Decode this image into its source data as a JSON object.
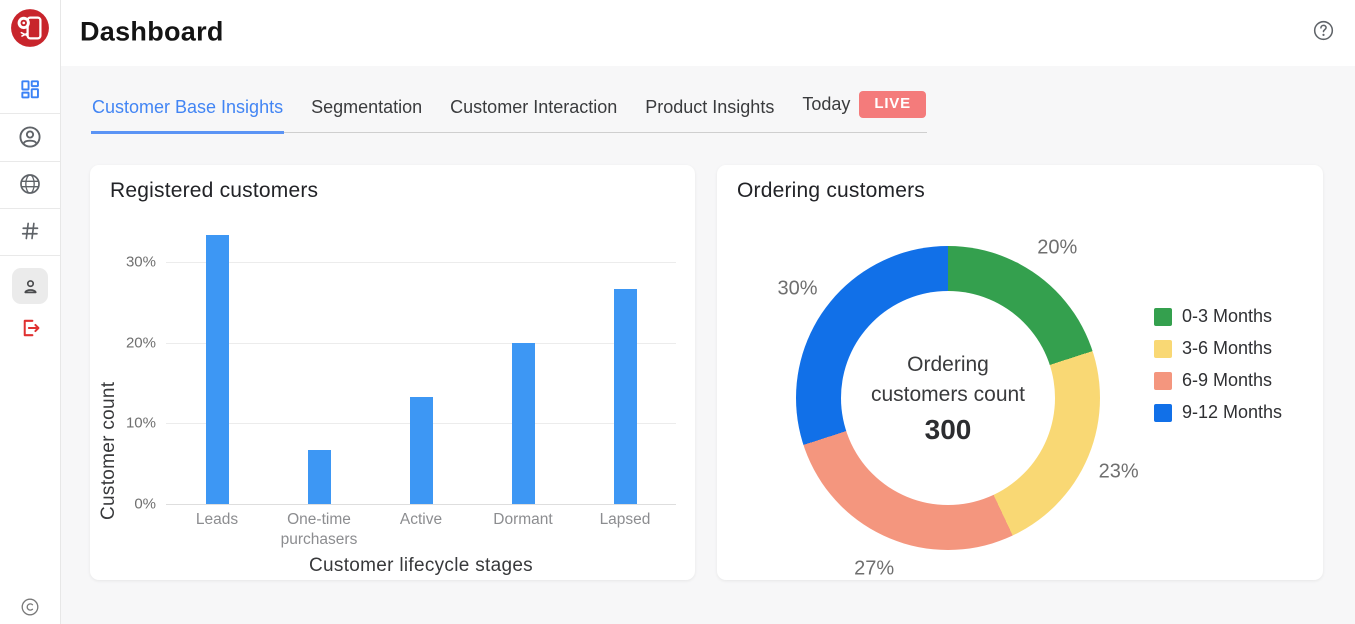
{
  "header": {
    "title": "Dashboard",
    "help_icon": "help-circle-icon"
  },
  "sidebar": {
    "logo_icon": "brand-logo",
    "icons": [
      "dashboard-grid-icon",
      "account-circle-icon",
      "globe-icon",
      "hash-icon",
      "user-icon",
      "logout-icon",
      "copyright-icon"
    ],
    "active_icon": "user-icon"
  },
  "tabs": [
    {
      "label": "Customer Base Insights",
      "active": true
    },
    {
      "label": "Segmentation",
      "active": false
    },
    {
      "label": "Customer Interaction",
      "active": false
    },
    {
      "label": "Product Insights",
      "active": false
    },
    {
      "label": "Today",
      "active": false,
      "badge": "LIVE"
    }
  ],
  "colors": {
    "accent_blue": "#4285f4",
    "live_badge": "#f47b7b",
    "bar_blue": "#3d97f4",
    "donut_green": "#34a04e",
    "donut_yellow": "#f9d874",
    "donut_salmon": "#f4967e",
    "donut_blue": "#1170e8"
  },
  "chart_data": [
    {
      "type": "bar",
      "title": "Registered customers",
      "categories": [
        "Leads",
        "One-time purchasers",
        "Active",
        "Dormant",
        "Lapsed"
      ],
      "values": [
        33.3,
        6.7,
        13.3,
        20,
        26.7
      ],
      "xlabel": "Customer lifecycle stages",
      "ylabel": "Customer count",
      "ylim": [
        0,
        35.2
      ],
      "yticks": [
        0,
        10,
        20,
        30
      ],
      "ytick_suffix": "%",
      "bar_color": "#3d97f4",
      "grid": true,
      "legend": "none"
    },
    {
      "type": "pie",
      "donut": true,
      "title": "Ordering customers",
      "center_label_lines": [
        "Ordering",
        "customers count"
      ],
      "center_value": "300",
      "label_suffix": "%",
      "legend_position": "right",
      "slices": [
        {
          "label": "0-3 Months",
          "value": 20,
          "color": "#34a04e"
        },
        {
          "label": "3-6 Months",
          "value": 23,
          "color": "#f9d874"
        },
        {
          "label": "6-9 Months",
          "value": 27,
          "color": "#f4967e"
        },
        {
          "label": "9-12 Months",
          "value": 30,
          "color": "#1170e8"
        }
      ]
    }
  ]
}
